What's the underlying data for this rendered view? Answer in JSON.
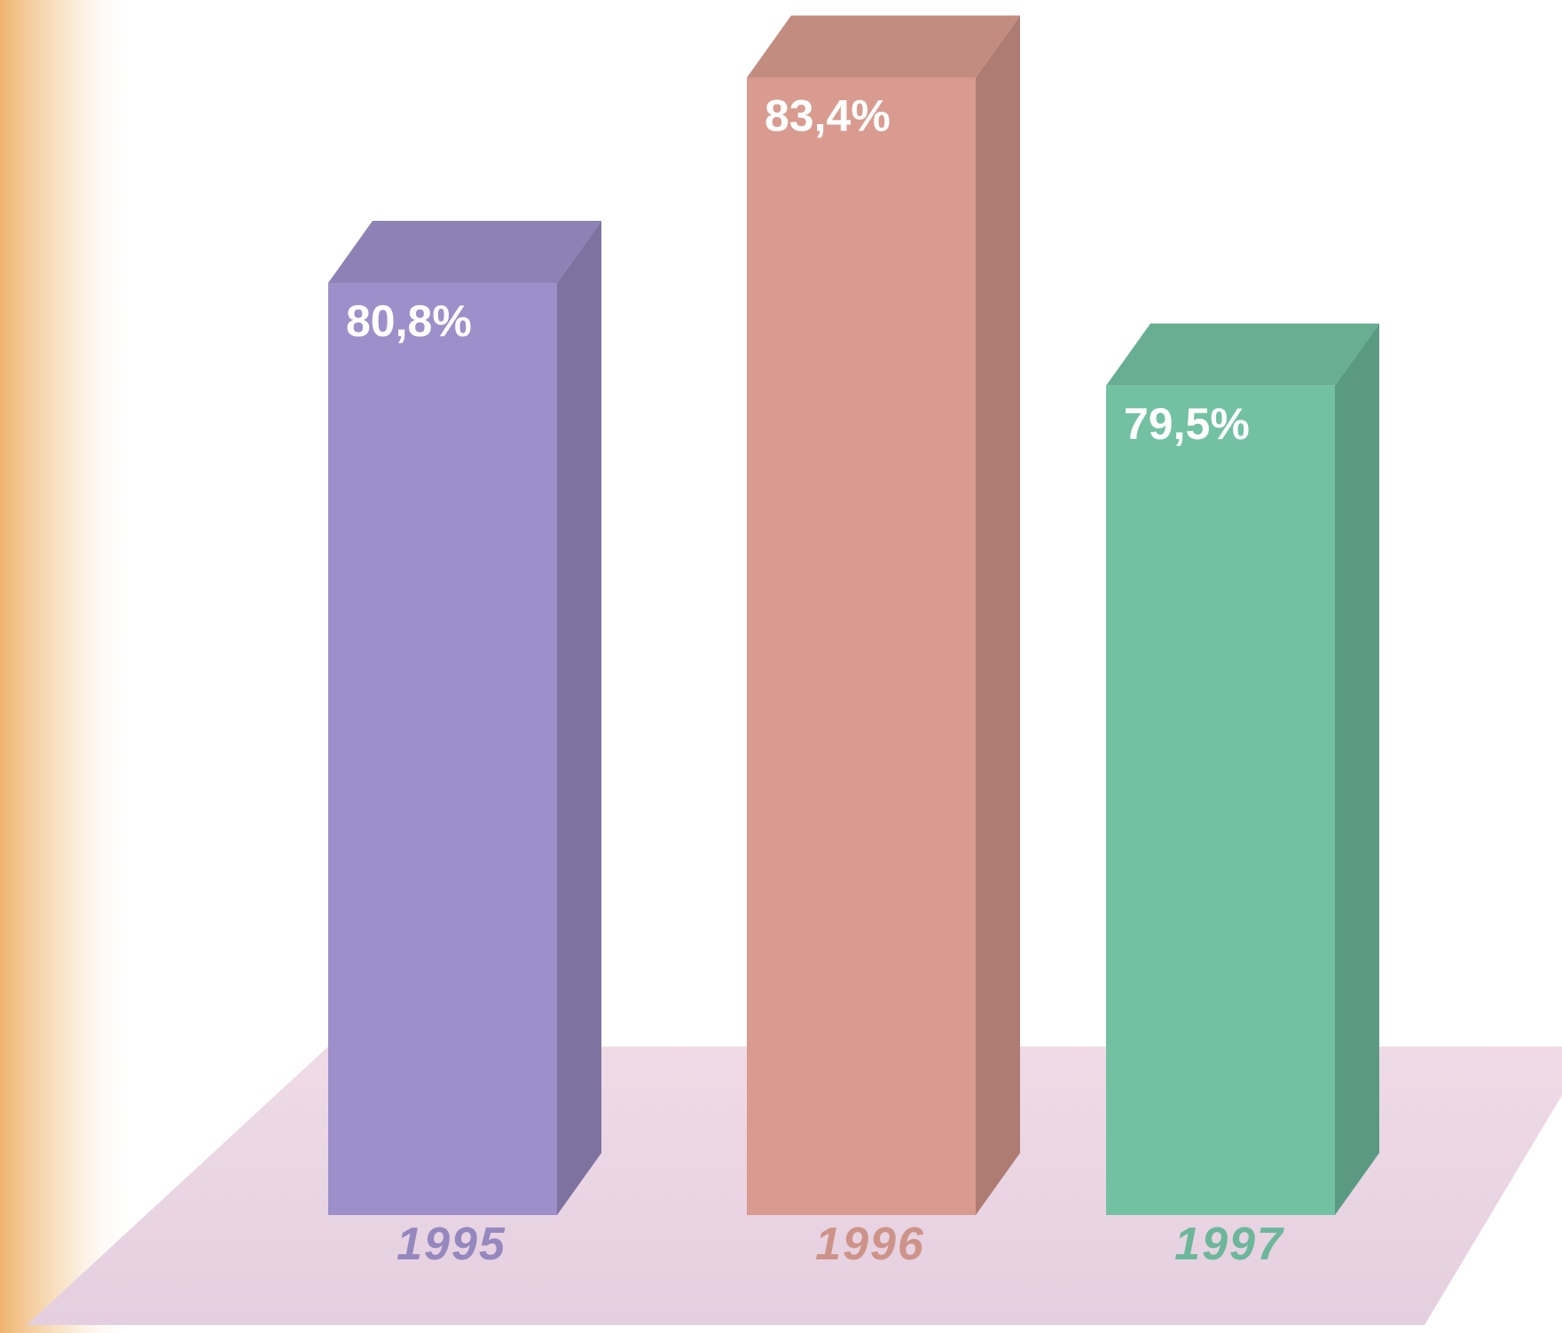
{
  "chart_data": {
    "type": "bar",
    "categories": [
      "1995",
      "1996",
      "1997"
    ],
    "values": [
      80.8,
      83.4,
      79.5
    ],
    "value_labels": [
      "80,8%",
      "83,4%",
      "79,5%"
    ],
    "colors": [
      "#9d8fc9",
      "#d99b8f",
      "#72c1a2"
    ],
    "ylim": [
      69,
      84
    ]
  }
}
